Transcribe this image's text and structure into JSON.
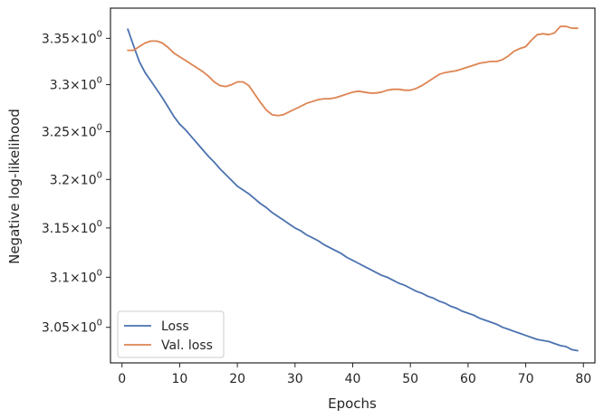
{
  "chart_data": {
    "type": "line",
    "xlabel": "Epochs",
    "ylabel": "Negative log-likelihood",
    "xlim": [
      -2,
      82
    ],
    "ylim": [
      3.015,
      3.383
    ],
    "yscale": "log",
    "grid": false,
    "legend_position": "lower-left",
    "x_ticks": [
      0,
      10,
      20,
      30,
      40,
      50,
      60,
      70,
      80
    ],
    "x_tick_labels": [
      "0",
      "10",
      "20",
      "30",
      "40",
      "50",
      "60",
      "70",
      "80"
    ],
    "y_ticks": [
      3.05,
      3.1,
      3.15,
      3.2,
      3.25,
      3.3,
      3.35
    ],
    "y_tick_labels": [
      {
        "mantissa": "3.05",
        "exp": "0"
      },
      {
        "mantissa": "3.1",
        "exp": "0"
      },
      {
        "mantissa": "3.15",
        "exp": "0"
      },
      {
        "mantissa": "3.2",
        "exp": "0"
      },
      {
        "mantissa": "3.25",
        "exp": "0"
      },
      {
        "mantissa": "3.3",
        "exp": "0"
      },
      {
        "mantissa": "3.35",
        "exp": "0"
      }
    ],
    "series": [
      {
        "name": "Loss",
        "color": "#4c72b0",
        "x": [
          1,
          2,
          3,
          4,
          5,
          6,
          7,
          8,
          9,
          10,
          11,
          12,
          13,
          14,
          15,
          16,
          17,
          18,
          19,
          20,
          21,
          22,
          23,
          24,
          25,
          26,
          27,
          28,
          29,
          30,
          31,
          32,
          33,
          34,
          35,
          36,
          37,
          38,
          39,
          40,
          41,
          42,
          43,
          44,
          45,
          46,
          47,
          48,
          49,
          50,
          51,
          52,
          53,
          54,
          55,
          56,
          57,
          58,
          59,
          60,
          61,
          62,
          63,
          64,
          65,
          66,
          67,
          68,
          69,
          70,
          71,
          72,
          73,
          74,
          75,
          76,
          77,
          78,
          79
        ],
        "values": [
          3.36,
          3.342,
          3.325,
          3.313,
          3.304,
          3.295,
          3.286,
          3.276,
          3.266,
          3.258,
          3.252,
          3.245,
          3.238,
          3.231,
          3.224,
          3.218,
          3.211,
          3.205,
          3.199,
          3.193,
          3.189,
          3.185,
          3.18,
          3.175,
          3.171,
          3.166,
          3.162,
          3.158,
          3.154,
          3.15,
          3.147,
          3.143,
          3.14,
          3.137,
          3.133,
          3.13,
          3.127,
          3.124,
          3.12,
          3.117,
          3.114,
          3.111,
          3.108,
          3.105,
          3.102,
          3.1,
          3.097,
          3.094,
          3.092,
          3.089,
          3.086,
          3.084,
          3.081,
          3.079,
          3.076,
          3.074,
          3.071,
          3.069,
          3.066,
          3.064,
          3.062,
          3.059,
          3.057,
          3.055,
          3.053,
          3.05,
          3.048,
          3.046,
          3.044,
          3.042,
          3.04,
          3.038,
          3.037,
          3.036,
          3.034,
          3.032,
          3.031,
          3.028,
          3.027
        ]
      },
      {
        "name": "Val. loss",
        "color": "#dd8452",
        "x": [
          1,
          2,
          3,
          4,
          5,
          6,
          7,
          8,
          9,
          10,
          11,
          12,
          13,
          14,
          15,
          16,
          17,
          18,
          19,
          20,
          21,
          22,
          23,
          24,
          25,
          26,
          27,
          28,
          29,
          30,
          31,
          32,
          33,
          34,
          35,
          36,
          37,
          38,
          39,
          40,
          41,
          42,
          43,
          44,
          45,
          46,
          47,
          48,
          49,
          50,
          51,
          52,
          53,
          54,
          55,
          56,
          57,
          58,
          59,
          60,
          61,
          62,
          63,
          64,
          65,
          66,
          67,
          68,
          69,
          70,
          71,
          72,
          73,
          74,
          75,
          76,
          77,
          78,
          79
        ],
        "values": [
          3.337,
          3.337,
          3.341,
          3.345,
          3.347,
          3.347,
          3.345,
          3.34,
          3.334,
          3.33,
          3.326,
          3.322,
          3.318,
          3.314,
          3.309,
          3.303,
          3.299,
          3.298,
          3.3,
          3.303,
          3.303,
          3.299,
          3.29,
          3.281,
          3.273,
          3.268,
          3.267,
          3.268,
          3.271,
          3.274,
          3.277,
          3.28,
          3.282,
          3.284,
          3.285,
          3.285,
          3.286,
          3.288,
          3.29,
          3.292,
          3.293,
          3.292,
          3.291,
          3.291,
          3.292,
          3.294,
          3.295,
          3.295,
          3.294,
          3.294,
          3.296,
          3.299,
          3.303,
          3.307,
          3.311,
          3.313,
          3.314,
          3.315,
          3.317,
          3.319,
          3.321,
          3.323,
          3.324,
          3.325,
          3.325,
          3.327,
          3.331,
          3.336,
          3.339,
          3.341,
          3.348,
          3.354,
          3.355,
          3.354,
          3.356,
          3.363,
          3.363,
          3.361,
          3.361
        ]
      }
    ]
  }
}
